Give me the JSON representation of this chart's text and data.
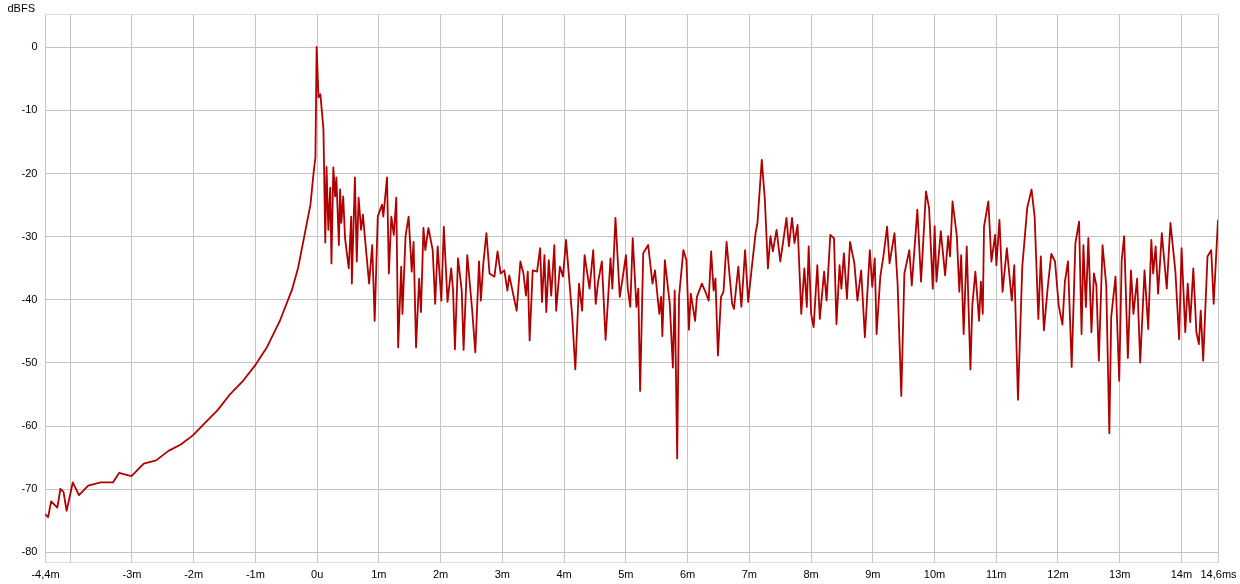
{
  "chart_data": {
    "type": "line",
    "ylabel": "dBFS",
    "x": [
      -4.4,
      -4.35,
      -4.3,
      -4.2,
      -4.15,
      -4.1,
      -4.05,
      -3.95,
      -3.85,
      -3.7,
      -3.5,
      -3.3,
      -3.2,
      -3.0,
      -2.9,
      -2.8,
      -2.6,
      -2.4,
      -2.2,
      -2.0,
      -1.8,
      -1.6,
      -1.4,
      -1.2,
      -1.0,
      -0.8,
      -0.6,
      -0.4,
      -0.3,
      -0.2,
      -0.1,
      -0.05,
      -0.02,
      0.0,
      0.03,
      0.06,
      0.11,
      0.14,
      0.16,
      0.19,
      0.22,
      0.24,
      0.27,
      0.3,
      0.32,
      0.36,
      0.38,
      0.4,
      0.43,
      0.46,
      0.52,
      0.56,
      0.57,
      0.62,
      0.65,
      0.68,
      0.72,
      0.75,
      0.78,
      0.85,
      0.9,
      0.94,
      0.99,
      1.06,
      1.08,
      1.14,
      1.17,
      1.21,
      1.25,
      1.29,
      1.32,
      1.37,
      1.39,
      1.44,
      1.49,
      1.54,
      1.57,
      1.61,
      1.66,
      1.69,
      1.73,
      1.76,
      1.81,
      1.88,
      1.92,
      1.96,
      2.02,
      2.06,
      2.12,
      2.18,
      2.21,
      2.24,
      2.29,
      2.35,
      2.38,
      2.44,
      2.52,
      2.57,
      2.63,
      2.66,
      2.7,
      2.75,
      2.8,
      2.88,
      2.93,
      2.98,
      3.04,
      3.09,
      3.12,
      3.24,
      3.3,
      3.35,
      3.39,
      3.42,
      3.45,
      3.5,
      3.57,
      3.62,
      3.65,
      3.69,
      3.72,
      3.76,
      3.8,
      3.85,
      3.88,
      3.94,
      3.99,
      4.04,
      4.14,
      4.19,
      4.25,
      4.3,
      4.34,
      4.42,
      4.48,
      4.52,
      4.56,
      4.62,
      4.68,
      4.76,
      4.79,
      4.84,
      4.91,
      4.96,
      5.01,
      5.04,
      5.08,
      5.12,
      5.18,
      5.21,
      5.24,
      5.29,
      5.37,
      5.44,
      5.48,
      5.55,
      5.58,
      5.6,
      5.64,
      5.72,
      5.77,
      5.8,
      5.84,
      5.87,
      5.94,
      5.99,
      6.03,
      6.06,
      6.13,
      6.16,
      6.24,
      6.31,
      6.35,
      6.39,
      6.43,
      6.46,
      6.5,
      6.55,
      6.59,
      6.64,
      6.73,
      6.76,
      6.83,
      6.88,
      6.94,
      6.99,
      7.05,
      7.11,
      7.14,
      7.21,
      7.26,
      7.31,
      7.35,
      7.39,
      7.45,
      7.51,
      7.56,
      7.61,
      7.65,
      7.7,
      7.74,
      7.79,
      7.85,
      7.9,
      7.94,
      7.97,
      8.01,
      8.05,
      8.11,
      8.15,
      8.22,
      8.26,
      8.32,
      8.38,
      8.42,
      8.47,
      8.5,
      8.54,
      8.59,
      8.64,
      8.71,
      8.76,
      8.82,
      8.88,
      8.96,
      9.0,
      9.04,
      9.07,
      9.13,
      9.18,
      9.24,
      9.28,
      9.36,
      9.41,
      9.47,
      9.52,
      9.6,
      9.64,
      9.73,
      9.79,
      9.87,
      9.92,
      9.98,
      10.01,
      10.04,
      10.11,
      10.18,
      10.23,
      10.26,
      10.3,
      10.37,
      10.41,
      10.44,
      10.48,
      10.53,
      10.59,
      10.62,
      10.67,
      10.73,
      10.76,
      10.79,
      10.81,
      10.88,
      10.93,
      10.99,
      11.01,
      11.06,
      11.11,
      11.18,
      11.26,
      11.3,
      11.36,
      11.43,
      11.51,
      11.58,
      11.63,
      11.69,
      11.73,
      11.78,
      11.84,
      11.9,
      11.96,
      12.02,
      12.08,
      12.12,
      12.17,
      12.23,
      12.29,
      12.35,
      12.39,
      12.42,
      12.46,
      12.5,
      12.55,
      12.59,
      12.63,
      12.67,
      12.73,
      12.79,
      12.84,
      12.87,
      12.94,
      13.0,
      13.04,
      13.08,
      13.14,
      13.19,
      13.23,
      13.29,
      13.34,
      13.41,
      13.47,
      13.52,
      13.55,
      13.59,
      13.63,
      13.69,
      13.77,
      13.83,
      13.91,
      13.97,
      14.01,
      14.07,
      14.11,
      14.15,
      14.2,
      14.25,
      14.29,
      14.32,
      14.36,
      14.43,
      14.49,
      14.53,
      14.6
    ],
    "series": [
      {
        "color": "#b00000",
        "values": [
          -74,
          -74.5,
          -72,
          -73,
          -70,
          -70.5,
          -73.5,
          -69,
          -71,
          -69.5,
          -69,
          -69,
          -67.5,
          -68,
          -67,
          -66,
          -65.5,
          -64,
          -63,
          -61.5,
          -59.5,
          -57.5,
          -55,
          -53,
          -50.5,
          -47.5,
          -43.5,
          -38.5,
          -35,
          -30,
          -25,
          -20,
          -17.5,
          0,
          -8,
          -7.5,
          -13,
          -31,
          -19,
          -29,
          -22.3,
          -34.3,
          -19.1,
          -23.7,
          -20.7,
          -31.4,
          -22.6,
          -27.9,
          -23.7,
          -30.3,
          -35.1,
          -26.9,
          -37.5,
          -20.7,
          -34,
          -23.9,
          -29,
          -26.6,
          -30,
          -37.5,
          -31.4,
          -43.4,
          -26.9,
          -25,
          -26.9,
          -20.7,
          -35.9,
          -26.9,
          -29.8,
          -23.9,
          -47.6,
          -34.8,
          -42.3,
          -30,
          -26.9,
          -35.6,
          -30.9,
          -47.6,
          -36.7,
          -42,
          -28.7,
          -32.2,
          -28.7,
          -32.2,
          -40.7,
          -31.6,
          -40.2,
          -28.5,
          -40.4,
          -35.1,
          -38.6,
          -47.9,
          -33.5,
          -38.6,
          -48,
          -33,
          -41.8,
          -48.4,
          -34,
          -40.2,
          -34.3,
          -29.5,
          -35.9,
          -36.4,
          -32.4,
          -35.9,
          -35.4,
          -38.6,
          -36.2,
          -41.8,
          -34,
          -35.9,
          -39.4,
          -35.6,
          -46.5,
          -35.4,
          -35.6,
          -31.9,
          -40.4,
          -33,
          -42,
          -33.8,
          -39.4,
          -31.4,
          -41.8,
          -34.8,
          -36.4,
          -30.6,
          -42.8,
          -51.1,
          -37.5,
          -41.8,
          -33,
          -38.3,
          -32.2,
          -40.7,
          -37.2,
          -34,
          -46.4,
          -33.5,
          -38.3,
          -27.1,
          -39.6,
          -36.4,
          -33,
          -38.3,
          -41.2,
          -30.3,
          -41.2,
          -38.3,
          -54.5,
          -32.7,
          -31.4,
          -37.5,
          -35.4,
          -42.3,
          -39.6,
          -45.8,
          -33.8,
          -40.7,
          -50.8,
          -38.6,
          -65.2,
          -39.6,
          -32.2,
          -33.8,
          -44.8,
          -39.1,
          -43.4,
          -39.6,
          -37.5,
          -39.1,
          -40.2,
          -32.4,
          -38.6,
          -36.7,
          -48.9,
          -39.6,
          -38.8,
          -30.9,
          -40.7,
          -41.5,
          -34.8,
          -41.2,
          -32.2,
          -40.4,
          -34.8,
          -29.5,
          -27.9,
          -17.9,
          -24.2,
          -35.1,
          -30,
          -32.4,
          -29,
          -34,
          -30.6,
          -27.1,
          -31.6,
          -27.1,
          -31.1,
          -28.2,
          -42.3,
          -35.1,
          -41.2,
          -31.6,
          -42.3,
          -44.4,
          -34.6,
          -43.1,
          -35.6,
          -40.2,
          -29.8,
          -30.3,
          -43.9,
          -34.6,
          -38.3,
          -32.7,
          -39.9,
          -30.9,
          -34.3,
          -40.2,
          -35.4,
          -46,
          -32.2,
          -38,
          -33.5,
          -45.5,
          -36.4,
          -33.2,
          -28.5,
          -34.3,
          -29.5,
          -37.5,
          -55.3,
          -35.9,
          -32.2,
          -37.8,
          -25.8,
          -37.2,
          -22.9,
          -25.5,
          -38.3,
          -28.4,
          -37.2,
          -29.2,
          -36.2,
          -30,
          -33.2,
          -24.5,
          -30,
          -38.8,
          -33,
          -45.5,
          -31.6,
          -51.1,
          -41,
          -35.6,
          -43.4,
          -37.2,
          -42.3,
          -28.5,
          -24.5,
          -34,
          -29.8,
          -34.6,
          -27.4,
          -38.8,
          -31.9,
          -40.2,
          -34.6,
          -55.9,
          -34.8,
          -25.5,
          -22.6,
          -26.9,
          -43.1,
          -33.2,
          -44.9,
          -38.3,
          -32.8,
          -34,
          -41,
          -44,
          -37.2,
          -34,
          -50.7,
          -31.1,
          -27.7,
          -45.5,
          -31.4,
          -41.2,
          -30.3,
          -45.2,
          -35.9,
          -37.8,
          -49.7,
          -31.4,
          -37.8,
          -61.2,
          -42.8,
          -36.4,
          -52.9,
          -33.8,
          -30,
          -49.3,
          -35.4,
          -42.3,
          -36.7,
          -50,
          -35.4,
          -44.7,
          -30.6,
          -35.9,
          -31.6,
          -39.1,
          -29.5,
          -38.3,
          -27.9,
          -35.6,
          -46.3,
          -31.9,
          -45.2,
          -37.5,
          -43.6,
          -35.1,
          -45.2,
          -47.1,
          -41.8,
          -49.7,
          -33.2,
          -32.2,
          -40.7,
          -27.4
        ]
      }
    ],
    "xlim": [
      -4.4,
      14.6
    ],
    "ylim": [
      -81.6,
      5.2
    ],
    "xticks": [
      {
        "value": -4.4,
        "label": "-4,4m"
      },
      {
        "value": -4,
        "label": null
      },
      {
        "value": -3,
        "label": "-3m"
      },
      {
        "value": -2,
        "label": "-2m"
      },
      {
        "value": -1,
        "label": "-1m"
      },
      {
        "value": 0,
        "label": "0u"
      },
      {
        "value": 1,
        "label": "1m"
      },
      {
        "value": 2,
        "label": "2m"
      },
      {
        "value": 3,
        "label": "3m"
      },
      {
        "value": 4,
        "label": "4m"
      },
      {
        "value": 5,
        "label": "5m"
      },
      {
        "value": 6,
        "label": "6m"
      },
      {
        "value": 7,
        "label": "7m"
      },
      {
        "value": 8,
        "label": "8m"
      },
      {
        "value": 9,
        "label": "9m"
      },
      {
        "value": 10,
        "label": "10m"
      },
      {
        "value": 11,
        "label": "11m"
      },
      {
        "value": 12,
        "label": "12m"
      },
      {
        "value": 13,
        "label": "13m"
      },
      {
        "value": 14,
        "label": "14m"
      },
      {
        "value": 14.6,
        "label": "14,6ms"
      }
    ],
    "yticks": [
      -80,
      -70,
      -60,
      -50,
      -40,
      -30,
      -20,
      -10,
      0
    ],
    "grid": true
  }
}
